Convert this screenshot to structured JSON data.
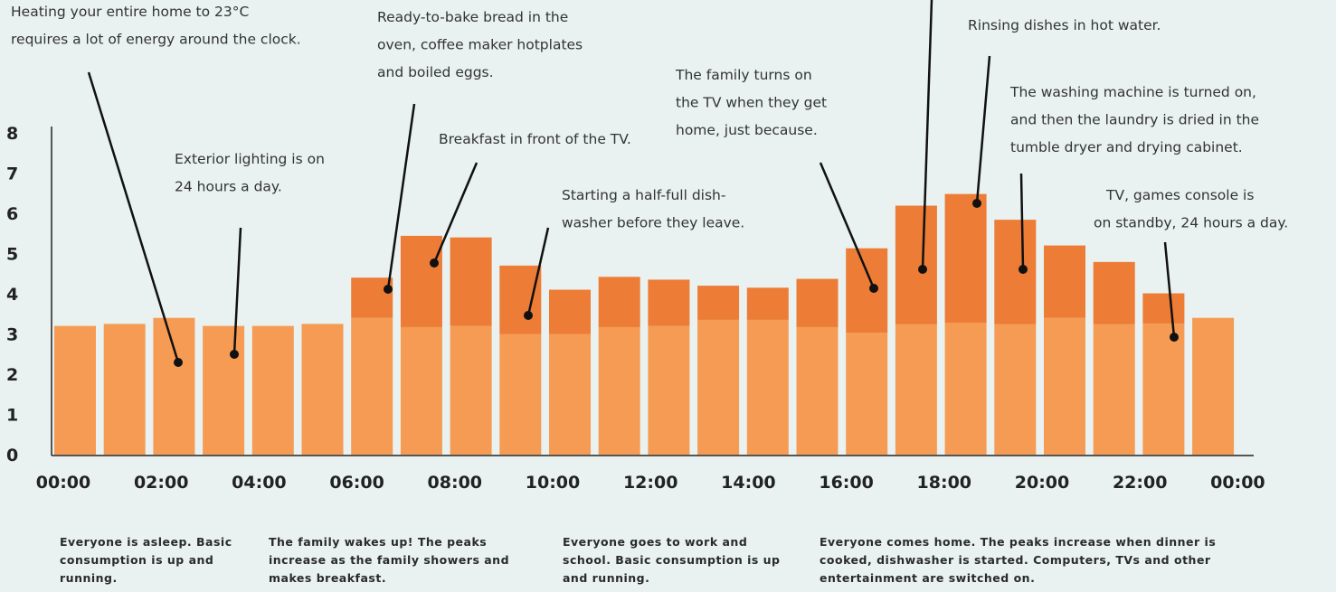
{
  "chart_data": {
    "type": "stacked_bar",
    "ylim": [
      0,
      8
    ],
    "yticks": [
      0,
      1,
      2,
      3,
      4,
      5,
      6,
      7,
      8
    ],
    "xticks": [
      "00:00",
      "02:00",
      "04:00",
      "06:00",
      "08:00",
      "10:00",
      "12:00",
      "14:00",
      "16:00",
      "18:00",
      "20:00",
      "22:00",
      "00:00"
    ],
    "series": [
      {
        "color": "#f59b54",
        "values": [
          3.2,
          3.25,
          3.4,
          3.2,
          3.2,
          3.25,
          3.4,
          3.17,
          3.2,
          3.0,
          3.0,
          3.17,
          3.2,
          3.35,
          3.35,
          3.17,
          3.03,
          3.24,
          3.28,
          3.24,
          3.4,
          3.24,
          3.26,
          3.4
        ]
      },
      {
        "color": "#ec7c36",
        "values": [
          0,
          0,
          0,
          0,
          0,
          0,
          1.0,
          2.27,
          2.2,
          1.7,
          1.1,
          1.25,
          1.15,
          0.85,
          0.8,
          1.2,
          2.1,
          2.95,
          3.2,
          2.6,
          1.8,
          1.55,
          0.75,
          0
        ]
      }
    ],
    "annotations": [
      {
        "lines": [
          "Heating your entire home to 23°C",
          "requires a lot of energy around the clock."
        ]
      },
      {
        "lines": [
          "Ready-to-bake bread in the",
          "oven, coffee maker hotplates",
          "and boiled eggs."
        ]
      },
      {
        "lines": [
          "Exterior lighting is on",
          "24 hours a day."
        ]
      },
      {
        "lines": [
          "Breakfast in front of the TV."
        ]
      },
      {
        "lines": [
          "Starting a half-full dish-",
          "washer before they leave."
        ]
      },
      {
        "lines": [
          "The family turns on",
          "the TV when they get",
          "home, just because."
        ]
      },
      {
        "lines": [
          "Rinsing dishes in hot water."
        ]
      },
      {
        "lines": [
          "The washing machine is turned on,",
          "and then the laundry is dried in the",
          "tumble dryer and drying cabinet."
        ]
      },
      {
        "lines": [
          "TV, games console is",
          "on standby, 24 hours a day."
        ]
      }
    ],
    "notes": [
      {
        "lines": [
          "Everyone is asleep. Basic",
          "consumption is up and",
          "running."
        ]
      },
      {
        "lines": [
          "The family wakes up! The peaks",
          "increase as the family showers and",
          "makes breakfast."
        ]
      },
      {
        "lines": [
          "Everyone goes to work and",
          "school. Basic consumption is up",
          "and running."
        ]
      },
      {
        "lines": [
          "Everyone comes home. The peaks increase when dinner is",
          "cooked, dishwasher is started. Computers, TVs and other",
          "entertainment are switched on."
        ]
      }
    ]
  }
}
